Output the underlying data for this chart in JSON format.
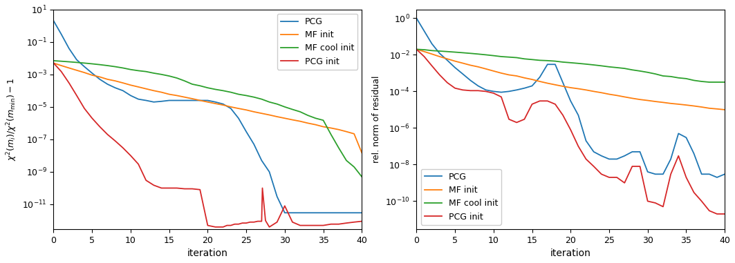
{
  "left_ylabel": "$\\chi^2(m_i)/\\chi^2(m_{\\mathrm{min}}) - 1$",
  "right_ylabel": "rel. norm of residual",
  "xlabel": "iteration",
  "xlim": [
    0,
    40
  ],
  "left_ylim": [
    3e-13,
    10
  ],
  "right_ylim": [
    3e-12,
    3
  ],
  "colors": {
    "PCG": "#1f77b4",
    "MF init": "#ff7f0e",
    "MF cool init": "#2ca02c",
    "PCG init": "#d62728"
  },
  "legend_labels": [
    "PCG",
    "MF init",
    "MF cool init",
    "PCG init"
  ],
  "left": {
    "PCG": {
      "x": [
        0,
        1,
        2,
        3,
        4,
        5,
        6,
        7,
        8,
        9,
        10,
        11,
        12,
        13,
        14,
        15,
        16,
        17,
        18,
        19,
        20,
        21,
        22,
        23,
        24,
        25,
        26,
        27,
        28,
        29,
        30,
        31,
        32,
        33,
        34,
        35,
        36,
        37,
        38,
        39,
        40
      ],
      "y": [
        2.0,
        0.3,
        0.04,
        0.008,
        0.003,
        0.0012,
        0.0005,
        0.00025,
        0.00015,
        0.0001,
        5e-05,
        3e-05,
        2.5e-05,
        2e-05,
        2.2e-05,
        2.5e-05,
        2.5e-05,
        2.5e-05,
        2.5e-05,
        2.5e-05,
        2.5e-05,
        2e-05,
        1.5e-05,
        8e-06,
        2e-06,
        3e-07,
        5e-08,
        5e-09,
        1e-09,
        3e-11,
        3e-12,
        3e-12,
        3e-12,
        3e-12,
        3e-12,
        3e-12,
        3e-12,
        3e-12,
        3e-12,
        3e-12,
        3e-12
      ]
    },
    "MF init": {
      "x": [
        0,
        1,
        2,
        3,
        4,
        5,
        6,
        7,
        8,
        9,
        10,
        11,
        12,
        13,
        14,
        15,
        16,
        17,
        18,
        19,
        20,
        21,
        22,
        23,
        24,
        25,
        26,
        27,
        28,
        29,
        30,
        31,
        32,
        33,
        34,
        35,
        36,
        37,
        38,
        39,
        40
      ],
      "y": [
        0.005,
        0.0035,
        0.0025,
        0.0018,
        0.0013,
        0.0009,
        0.0007,
        0.0005,
        0.0004,
        0.0003,
        0.00022,
        0.00017,
        0.00013,
        0.0001,
        8e-05,
        6e-05,
        5e-05,
        4e-05,
        3.2e-05,
        2.5e-05,
        2e-05,
        1.6e-05,
        1.3e-05,
        1e-05,
        8e-06,
        6.5e-06,
        5e-06,
        4e-06,
        3.2e-06,
        2.5e-06,
        2e-06,
        1.6e-06,
        1.3e-06,
        1e-06,
        8e-07,
        6e-07,
        5e-07,
        4e-07,
        3e-07,
        2.2e-07,
        1.5e-08
      ]
    },
    "MF cool init": {
      "x": [
        0,
        1,
        2,
        3,
        4,
        5,
        6,
        7,
        8,
        9,
        10,
        11,
        12,
        13,
        14,
        15,
        16,
        17,
        18,
        19,
        20,
        21,
        22,
        23,
        24,
        25,
        26,
        27,
        28,
        29,
        30,
        31,
        32,
        33,
        34,
        35,
        36,
        37,
        38,
        39,
        40
      ],
      "y": [
        0.007,
        0.0065,
        0.006,
        0.0055,
        0.005,
        0.0045,
        0.004,
        0.0035,
        0.003,
        0.0025,
        0.002,
        0.0017,
        0.0015,
        0.0012,
        0.001,
        0.0008,
        0.0006,
        0.0004,
        0.00025,
        0.0002,
        0.00015,
        0.00012,
        0.0001,
        8e-05,
        6e-05,
        5e-05,
        4e-05,
        3e-05,
        2e-05,
        1.5e-05,
        1e-05,
        7e-06,
        5e-06,
        3e-06,
        2e-06,
        1.5e-06,
        2e-07,
        3e-08,
        5e-09,
        2e-09,
        5e-10
      ]
    },
    "PCG init": {
      "x": [
        0,
        1,
        2,
        3,
        4,
        5,
        6,
        7,
        8,
        9,
        10,
        11,
        12,
        13,
        14,
        15,
        16,
        17,
        18,
        19,
        20,
        21,
        22,
        22.5,
        23,
        23.5,
        24,
        24.5,
        25,
        25.5,
        26,
        26.5,
        27,
        27.1,
        27.5,
        28,
        29,
        30,
        31,
        32,
        33,
        34,
        35,
        36,
        37,
        38,
        39,
        40
      ],
      "y": [
        0.005,
        0.0015,
        0.0003,
        5e-05,
        8e-06,
        2e-06,
        6e-07,
        2e-07,
        8e-08,
        3e-08,
        1e-08,
        3e-09,
        3e-10,
        1.5e-10,
        1e-10,
        1e-10,
        1e-10,
        9e-11,
        9e-11,
        8e-11,
        5e-13,
        4e-13,
        4e-13,
        5e-13,
        5e-13,
        6e-13,
        6e-13,
        7e-13,
        7e-13,
        8e-13,
        8e-13,
        9e-13,
        9e-13,
        1e-10,
        1e-12,
        4e-13,
        8e-13,
        8e-12,
        8e-13,
        5e-13,
        5e-13,
        5e-13,
        5e-13,
        6e-13,
        6e-13,
        7e-13,
        8e-13,
        9e-13
      ]
    }
  },
  "right": {
    "PCG": {
      "x": [
        0,
        1,
        2,
        3,
        4,
        5,
        6,
        7,
        8,
        9,
        10,
        11,
        12,
        13,
        14,
        15,
        16,
        17,
        18,
        19,
        20,
        21,
        22,
        23,
        24,
        25,
        26,
        27,
        28,
        29,
        30,
        31,
        32,
        33,
        34,
        35,
        36,
        37,
        38,
        39,
        40
      ],
      "y": [
        1.0,
        0.2,
        0.04,
        0.012,
        0.005,
        0.002,
        0.0009,
        0.0004,
        0.0002,
        0.00012,
        0.0001,
        9e-05,
        0.0001,
        0.00012,
        0.00015,
        0.0002,
        0.0006,
        0.003,
        0.003,
        0.0003,
        3e-05,
        5e-06,
        2e-07,
        5e-08,
        3e-08,
        2e-08,
        2e-08,
        3e-08,
        5e-08,
        5e-08,
        4e-09,
        3e-09,
        3e-09,
        2e-08,
        5e-07,
        3e-07,
        4e-08,
        3e-09,
        3e-09,
        2e-09,
        3e-09
      ]
    },
    "MF init": {
      "x": [
        0,
        1,
        2,
        3,
        4,
        5,
        6,
        7,
        8,
        9,
        10,
        11,
        12,
        13,
        14,
        15,
        16,
        17,
        18,
        19,
        20,
        21,
        22,
        23,
        24,
        25,
        26,
        27,
        28,
        29,
        30,
        31,
        32,
        33,
        34,
        35,
        36,
        37,
        38,
        39,
        40
      ],
      "y": [
        0.02,
        0.015,
        0.011,
        0.008,
        0.006,
        0.0045,
        0.0035,
        0.0027,
        0.0022,
        0.0017,
        0.0013,
        0.001,
        0.0008,
        0.0007,
        0.00055,
        0.00045,
        0.00035,
        0.00028,
        0.00023,
        0.00019,
        0.00016,
        0.00014,
        0.00012,
        0.0001,
        8.5e-05,
        7e-05,
        6e-05,
        5e-05,
        4.2e-05,
        3.6e-05,
        3.2e-05,
        2.8e-05,
        2.5e-05,
        2.2e-05,
        2e-05,
        1.8e-05,
        1.6e-05,
        1.4e-05,
        1.2e-05,
        1.1e-05,
        1e-05
      ]
    },
    "MF cool init": {
      "x": [
        0,
        1,
        2,
        3,
        4,
        5,
        6,
        7,
        8,
        9,
        10,
        11,
        12,
        13,
        14,
        15,
        16,
        17,
        18,
        19,
        20,
        21,
        22,
        23,
        24,
        25,
        26,
        27,
        28,
        29,
        30,
        31,
        32,
        33,
        34,
        35,
        36,
        37,
        38,
        39,
        40
      ],
      "y": [
        0.02,
        0.019,
        0.017,
        0.016,
        0.015,
        0.014,
        0.013,
        0.012,
        0.011,
        0.01,
        0.009,
        0.008,
        0.0075,
        0.007,
        0.006,
        0.0055,
        0.005,
        0.0048,
        0.0045,
        0.004,
        0.0037,
        0.0034,
        0.0031,
        0.0028,
        0.0025,
        0.0022,
        0.002,
        0.0018,
        0.0015,
        0.0013,
        0.0011,
        0.0009,
        0.0007,
        0.00065,
        0.00055,
        0.0005,
        0.0004,
        0.00035,
        0.00032,
        0.00032,
        0.00032
      ]
    },
    "PCG init": {
      "x": [
        0,
        1,
        2,
        3,
        4,
        5,
        6,
        7,
        8,
        9,
        10,
        11,
        12,
        13,
        14,
        15,
        16,
        17,
        18,
        19,
        20,
        21,
        22,
        23,
        24,
        25,
        26,
        27,
        28,
        29,
        30,
        31,
        32,
        33,
        34,
        35,
        36,
        37,
        38,
        39,
        40
      ],
      "y": [
        0.02,
        0.008,
        0.0025,
        0.0008,
        0.0003,
        0.00015,
        0.00012,
        0.00011,
        0.00011,
        0.0001,
        8e-05,
        5e-05,
        3e-06,
        2e-06,
        3e-06,
        2e-05,
        3e-05,
        3e-05,
        2e-05,
        5e-06,
        8e-07,
        1e-07,
        2e-08,
        8e-09,
        3e-09,
        2e-09,
        2e-09,
        1e-09,
        8e-09,
        8e-09,
        1e-10,
        8e-11,
        5e-11,
        3e-09,
        3e-08,
        2e-09,
        3e-10,
        1e-10,
        3e-11,
        2e-11,
        2e-11
      ]
    }
  }
}
